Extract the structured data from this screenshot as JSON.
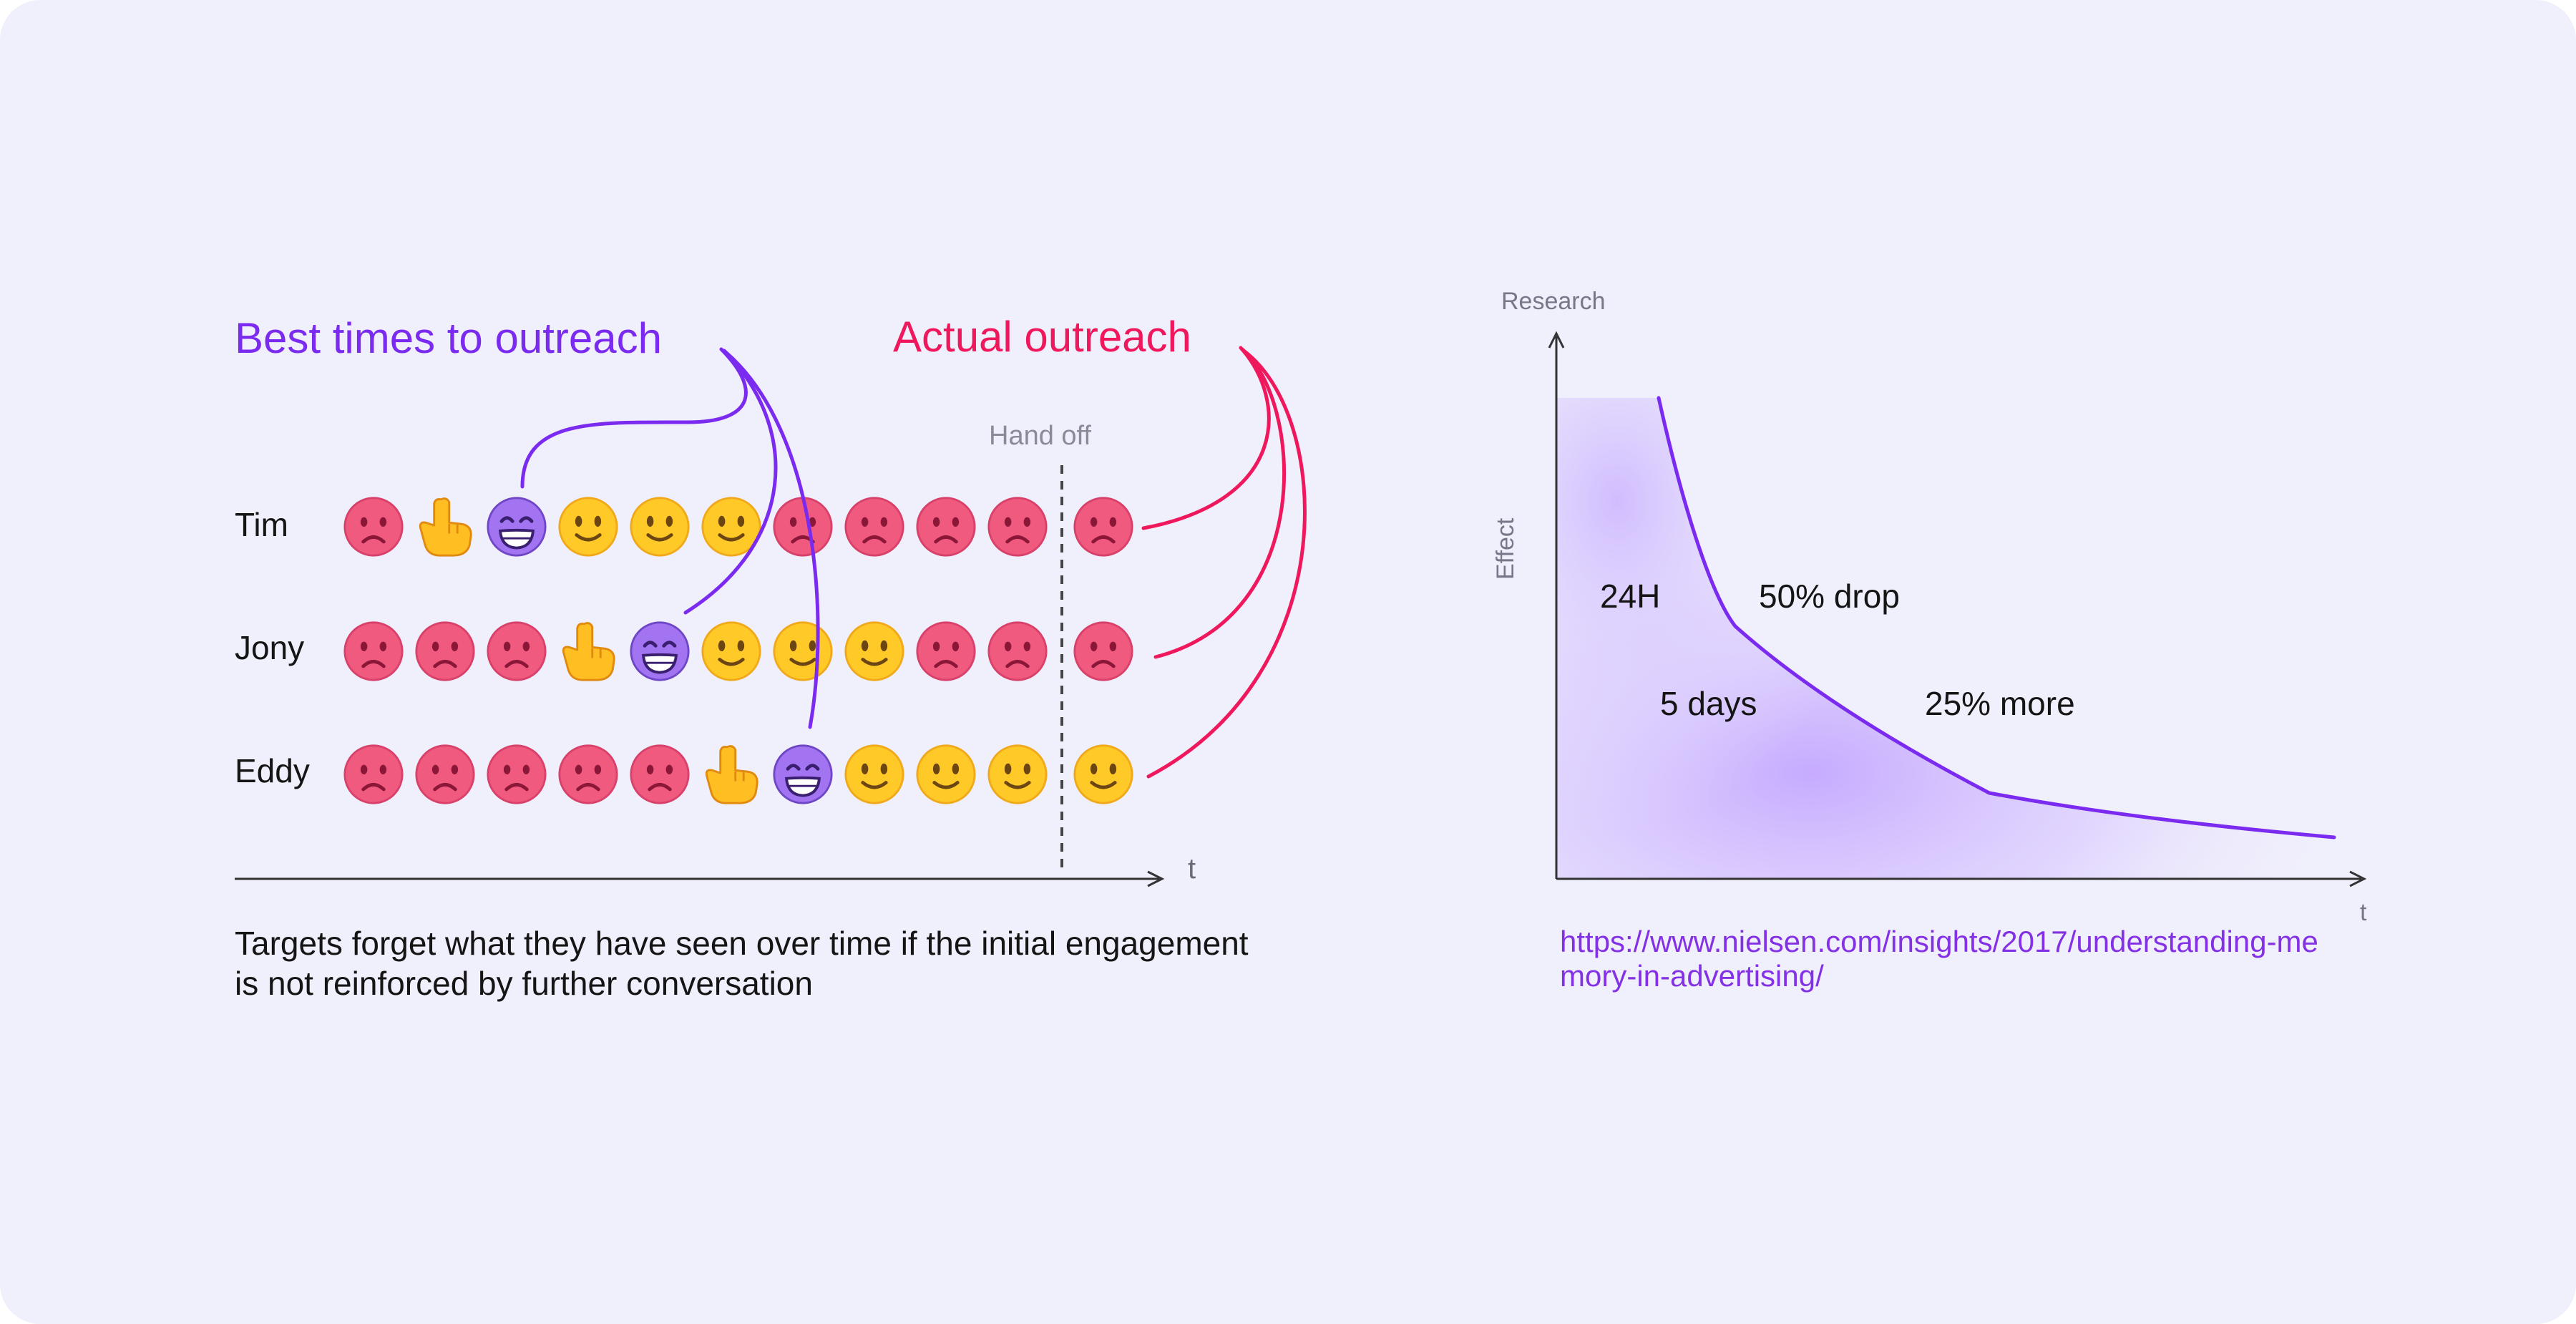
{
  "left_panel": {
    "best_times_label": "Best times to outreach",
    "actual_outreach_label": "Actual outreach",
    "handoff_label": "Hand off",
    "time_axis_label": "t",
    "caption": "Targets forget what they have seen over time if the initial engagement is not reinforced by further conversation",
    "rows": [
      {
        "name": "Tim",
        "icons": [
          "sad",
          "hand",
          "grin",
          "smile",
          "smile",
          "smile",
          "sad",
          "sad",
          "sad",
          "sad"
        ],
        "after_handoff": "sad"
      },
      {
        "name": "Jony",
        "icons": [
          "sad",
          "sad",
          "sad",
          "hand",
          "grin",
          "smile",
          "smile",
          "smile",
          "sad",
          "sad"
        ],
        "after_handoff": "sad"
      },
      {
        "name": "Eddy",
        "icons": [
          "sad",
          "sad",
          "sad",
          "sad",
          "sad",
          "hand",
          "grin",
          "smile",
          "smile",
          "smile"
        ],
        "after_handoff": "smile"
      }
    ]
  },
  "right_panel": {
    "y_axis_top_label": "Research",
    "y_axis_label": "Effect",
    "x_axis_label": "t",
    "annotations": {
      "h24": "24H",
      "drop50": "50% drop",
      "days5": "5 days",
      "more25": "25% more"
    },
    "link": "https://www.nielsen.com/insights/2017/understanding-memory-in-advertising/",
    "link_line1": "https://www.nielsen.com/insights/2017/understanding-me",
    "link_line2": "mory-in-advertising/"
  },
  "colors": {
    "background": "#f0effc",
    "purple": "#7b2bf0",
    "red": "#f0185c",
    "sad_face": "#f05a7e",
    "smile_face": "#ffc928",
    "grin_face": "#a274f2",
    "hand": "#ffbe22"
  }
}
